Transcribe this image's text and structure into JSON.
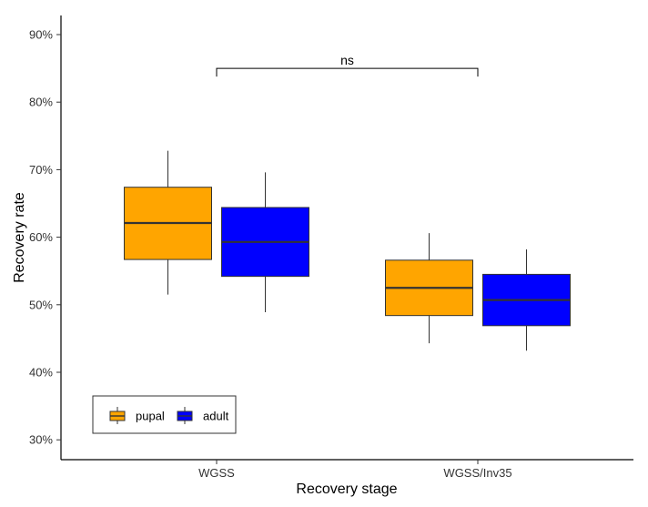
{
  "chart_data": {
    "type": "boxplot",
    "title": "",
    "xlabel": "Recovery stage",
    "ylabel": "Recovery rate",
    "categories": [
      "WGSS",
      "WGSS/Inv35"
    ],
    "y_ticks": [
      "30%",
      "40%",
      "50%",
      "60%",
      "70%",
      "80%",
      "90%"
    ],
    "y_tick_values": [
      30,
      40,
      50,
      60,
      70,
      80,
      90
    ],
    "ylim": [
      27,
      93
    ],
    "grid": false,
    "legend_position": "bottom-left",
    "series": [
      {
        "name": "pupal",
        "color": "#FFA500",
        "boxes": [
          {
            "category": "WGSS",
            "whisker_low": 51.5,
            "q1": 56.7,
            "median": 62.1,
            "q3": 67.4,
            "whisker_high": 72.8
          },
          {
            "category": "WGSS/Inv35",
            "whisker_low": 44.3,
            "q1": 48.4,
            "median": 52.5,
            "q3": 56.6,
            "whisker_high": 60.6
          }
        ]
      },
      {
        "name": "adult",
        "color": "#0000FF",
        "boxes": [
          {
            "category": "WGSS",
            "whisker_low": 48.9,
            "q1": 54.2,
            "median": 59.3,
            "q3": 64.4,
            "whisker_high": 69.6
          },
          {
            "category": "WGSS/Inv35",
            "whisker_low": 43.2,
            "q1": 46.9,
            "median": 50.7,
            "q3": 54.5,
            "whisker_high": 58.2
          }
        ]
      }
    ],
    "annotations": [
      {
        "type": "bracket",
        "from": "WGSS",
        "to": "WGSS/Inv35",
        "y": 85,
        "label": "ns"
      }
    ]
  }
}
